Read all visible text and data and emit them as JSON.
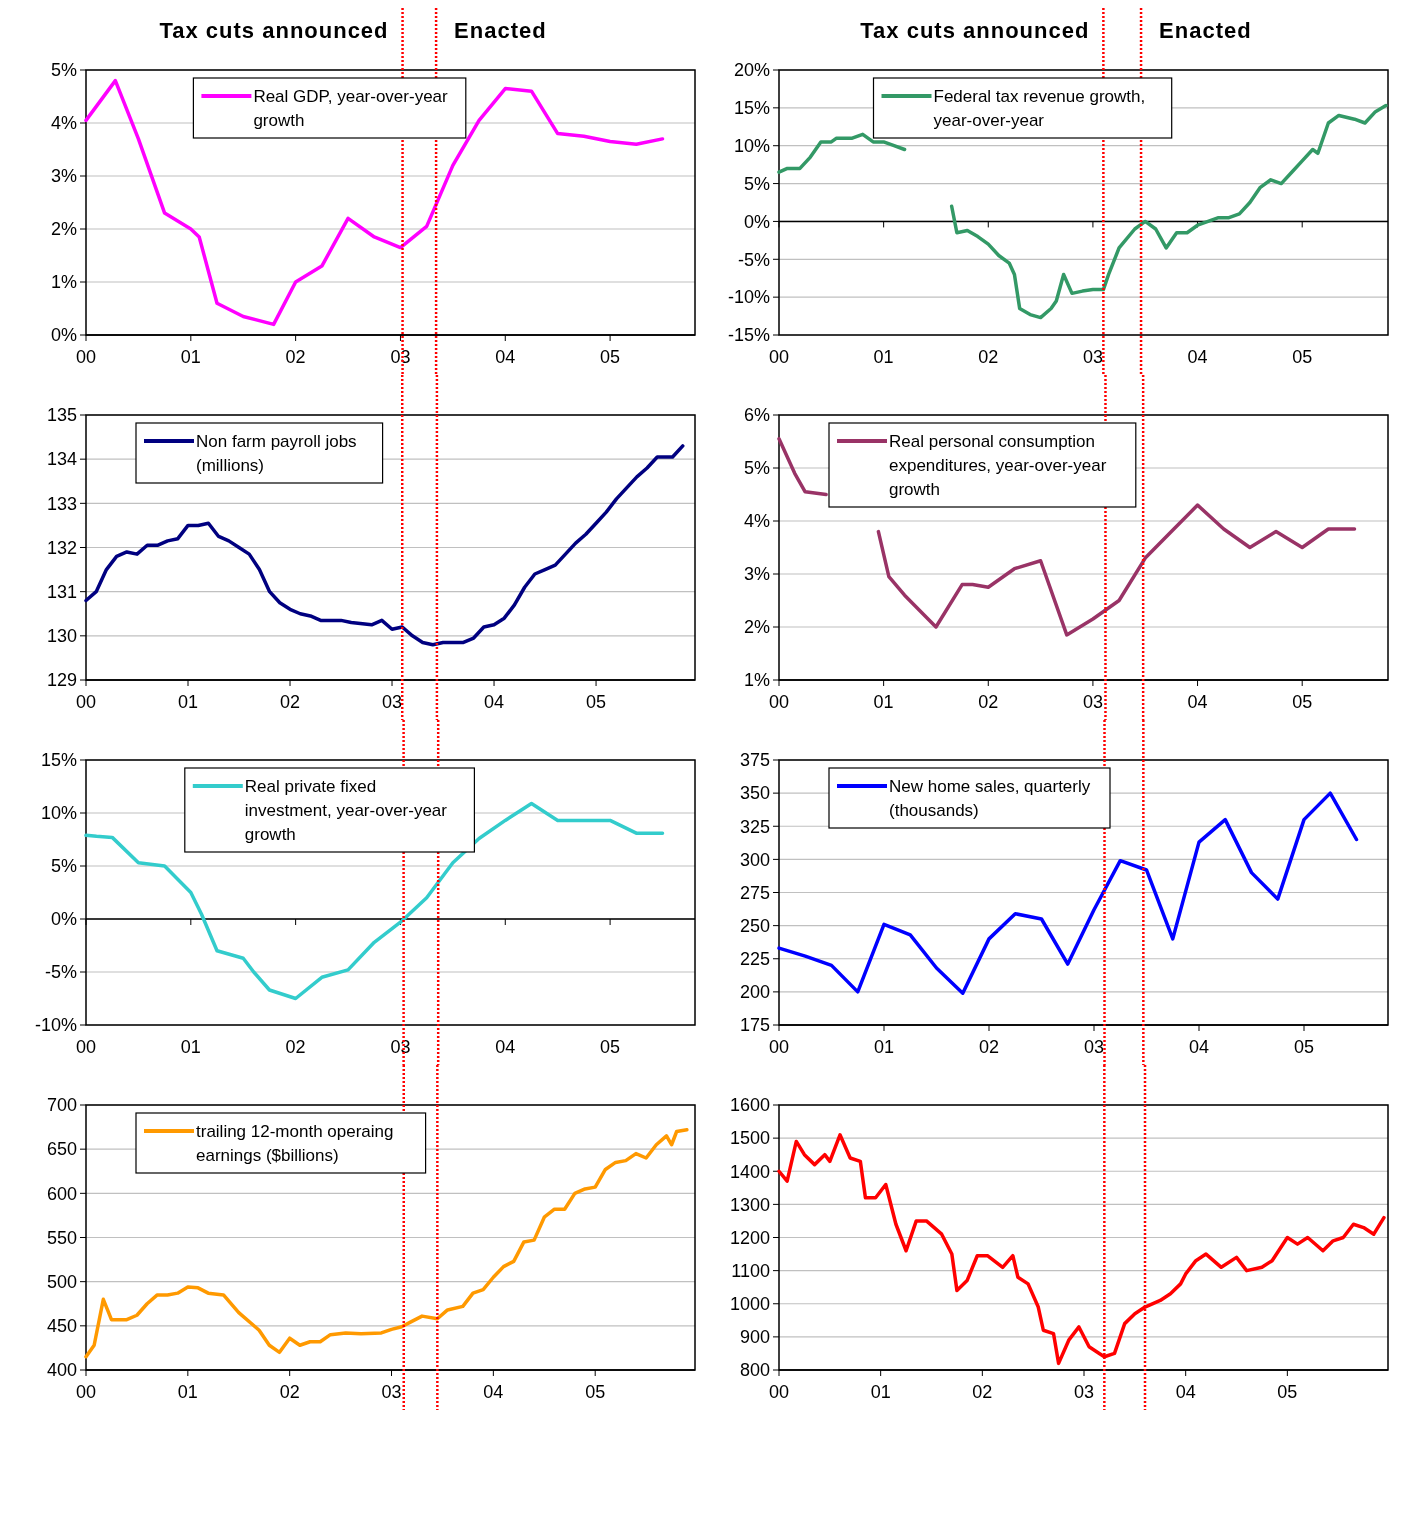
{
  "chart_data": [
    {
      "type": "line",
      "xlim": [
        0,
        5.81
      ],
      "ylim": [
        0,
        5
      ],
      "xticks": [
        {
          "value": 0,
          "label": "00"
        },
        {
          "value": 1,
          "label": "01"
        },
        {
          "value": 2,
          "label": "02"
        },
        {
          "value": 3,
          "label": "03"
        },
        {
          "value": 4,
          "label": "04"
        },
        {
          "value": 5,
          "label": "05"
        }
      ],
      "yticks": [
        {
          "value": 0,
          "label": "0%"
        },
        {
          "value": 1,
          "label": "1%"
        },
        {
          "value": 2,
          "label": "2%"
        },
        {
          "value": 3,
          "label": "3%"
        },
        {
          "value": 4,
          "label": "4%"
        },
        {
          "value": 5,
          "label": "5%"
        }
      ],
      "grid": "y",
      "legend": "top",
      "line_style": "solid",
      "marker": "none",
      "ref_lines": [
        {
          "axis": "x",
          "value": 3.02,
          "label": "Tax cuts announced",
          "color": "#ff0000",
          "line_style": "dotted"
        },
        {
          "axis": "x",
          "value": 3.34,
          "label": "Enacted",
          "color": "#ff0000",
          "line_style": "dotted"
        }
      ],
      "series": [
        {
          "name": "Real GDP, year-over-year growth",
          "color": "#ff00ff",
          "x": [
            0,
            0.28,
            0.5,
            0.75,
            1.0,
            1.08,
            1.25,
            1.5,
            1.79,
            2.0,
            2.25,
            2.5,
            2.75,
            3.0,
            3.25,
            3.5,
            3.75,
            4.0,
            4.25,
            4.5,
            4.75,
            5.0,
            5.25,
            5.5
          ],
          "values": [
            4.05,
            4.8,
            3.7,
            2.3,
            2.0,
            1.85,
            0.6,
            0.35,
            0.2,
            1.0,
            1.3,
            2.2,
            1.85,
            1.65,
            2.05,
            3.2,
            4.05,
            4.65,
            4.6,
            3.8,
            3.75,
            3.65,
            3.6,
            3.7
          ]
        }
      ]
    },
    {
      "type": "line",
      "xlim": [
        0,
        5.82
      ],
      "ylim": [
        -15,
        20
      ],
      "xticks": [
        {
          "value": 0,
          "label": "00"
        },
        {
          "value": 1,
          "label": "01"
        },
        {
          "value": 2,
          "label": "02"
        },
        {
          "value": 3,
          "label": "03"
        },
        {
          "value": 4,
          "label": "04"
        },
        {
          "value": 5,
          "label": "05"
        }
      ],
      "yticks": [
        {
          "value": -15,
          "label": "-15%"
        },
        {
          "value": -10,
          "label": "-10%"
        },
        {
          "value": -5,
          "label": "-5%"
        },
        {
          "value": 0,
          "label": "0%"
        },
        {
          "value": 5,
          "label": "5%"
        },
        {
          "value": 10,
          "label": "10%"
        },
        {
          "value": 15,
          "label": "15%"
        },
        {
          "value": 20,
          "label": "20%"
        }
      ],
      "grid": "y",
      "legend": "top",
      "line_style": "solid",
      "marker": "none",
      "ref_lines": [
        {
          "axis": "x",
          "value": 3.1,
          "label": "Tax cuts announced",
          "color": "#ff0000",
          "line_style": "dotted"
        },
        {
          "axis": "x",
          "value": 3.46,
          "label": "Enacted",
          "color": "#ff0000",
          "line_style": "dotted"
        }
      ],
      "series": [
        {
          "name": "Federal tax revenue growth, year-over-year",
          "color": "#339966",
          "x": [
            0,
            0.08,
            0.2,
            0.3,
            0.4,
            0.5,
            0.55,
            0.7,
            0.8,
            0.9,
            1.0,
            1.1,
            1.2,
            1.4,
            1.65,
            1.7,
            1.8,
            1.9,
            2.0,
            2.1,
            2.2,
            2.25,
            2.3,
            2.4,
            2.5,
            2.6,
            2.65,
            2.72,
            2.8,
            2.9,
            3.0,
            3.1,
            3.15,
            3.25,
            3.4,
            3.5,
            3.6,
            3.7,
            3.8,
            3.9,
            4.0,
            4.1,
            4.2,
            4.3,
            4.4,
            4.5,
            4.6,
            4.7,
            4.8,
            4.9,
            5.0,
            5.1,
            5.15,
            5.25,
            5.35,
            5.5,
            5.6,
            5.7,
            5.8
          ],
          "values": [
            6.5,
            7,
            7,
            8.5,
            10.5,
            10.5,
            11,
            11,
            11.5,
            10.5,
            10.5,
            10,
            9.5,
            null,
            2,
            -1.5,
            -1.2,
            -2,
            -3,
            -4.5,
            -5.5,
            -7,
            -11.5,
            -12.3,
            -12.7,
            -11.5,
            -10.5,
            -7,
            -9.5,
            -9.2,
            -9,
            -9,
            -7,
            -3.5,
            -1,
            0,
            -1,
            -3.5,
            -1.5,
            -1.5,
            -0.5,
            0,
            0.5,
            0.5,
            1,
            2.5,
            4.5,
            5.5,
            5,
            6.5,
            8,
            9.5,
            9,
            13,
            14,
            13.5,
            13,
            14.5,
            15.3
          ]
        }
      ]
    },
    {
      "type": "line",
      "xlim": [
        0,
        5.97
      ],
      "ylim": [
        129,
        135
      ],
      "xticks": [
        {
          "value": 0,
          "label": "00"
        },
        {
          "value": 1,
          "label": "01"
        },
        {
          "value": 2,
          "label": "02"
        },
        {
          "value": 3,
          "label": "03"
        },
        {
          "value": 4,
          "label": "04"
        },
        {
          "value": 5,
          "label": "05"
        }
      ],
      "yticks": [
        129,
        130,
        131,
        132,
        133,
        134,
        135
      ],
      "grid": "y",
      "legend": "top left",
      "line_style": "solid",
      "marker": "none",
      "ref_lines": [
        {
          "axis": "x",
          "value": 3.1,
          "color": "#ff0000",
          "line_style": "dotted"
        },
        {
          "axis": "x",
          "value": 3.44,
          "color": "#ff0000",
          "line_style": "dotted"
        }
      ],
      "series": [
        {
          "name": "Non farm payroll jobs (millions)",
          "color": "#000080",
          "x": [
            0,
            0.1,
            0.2,
            0.3,
            0.4,
            0.5,
            0.6,
            0.7,
            0.8,
            0.9,
            1.0,
            1.1,
            1.2,
            1.3,
            1.4,
            1.5,
            1.6,
            1.7,
            1.8,
            1.9,
            2.0,
            2.1,
            2.2,
            2.3,
            2.5,
            2.6,
            2.8,
            2.9,
            3.0,
            3.1,
            3.2,
            3.3,
            3.4,
            3.5,
            3.7,
            3.8,
            3.9,
            4.0,
            4.1,
            4.2,
            4.3,
            4.4,
            4.5,
            4.6,
            4.7,
            4.8,
            4.9,
            5.0,
            5.1,
            5.2,
            5.3,
            5.4,
            5.5,
            5.6,
            5.75,
            5.85
          ],
          "values": [
            130.8,
            131.0,
            131.5,
            131.8,
            131.9,
            131.85,
            132.05,
            132.05,
            132.15,
            132.2,
            132.5,
            132.5,
            132.55,
            132.25,
            132.15,
            132.0,
            131.85,
            131.5,
            131.0,
            130.75,
            130.6,
            130.5,
            130.45,
            130.35,
            130.35,
            130.3,
            130.25,
            130.35,
            130.15,
            130.2,
            130.0,
            129.85,
            129.8,
            129.85,
            129.85,
            129.95,
            130.2,
            130.25,
            130.4,
            130.7,
            131.1,
            131.4,
            131.5,
            131.6,
            131.85,
            132.1,
            132.3,
            132.55,
            132.8,
            133.1,
            133.35,
            133.6,
            133.8,
            134.05,
            134.05,
            134.3
          ]
        }
      ]
    },
    {
      "type": "line",
      "xlim": [
        0,
        5.82
      ],
      "ylim": [
        1,
        6
      ],
      "xticks": [
        {
          "value": 0,
          "label": "00"
        },
        {
          "value": 1,
          "label": "01"
        },
        {
          "value": 2,
          "label": "02"
        },
        {
          "value": 3,
          "label": "03"
        },
        {
          "value": 4,
          "label": "04"
        },
        {
          "value": 5,
          "label": "05"
        }
      ],
      "yticks": [
        {
          "value": 1,
          "label": "1%"
        },
        {
          "value": 2,
          "label": "2%"
        },
        {
          "value": 3,
          "label": "3%"
        },
        {
          "value": 4,
          "label": "4%"
        },
        {
          "value": 5,
          "label": "5%"
        },
        {
          "value": 6,
          "label": "6%"
        }
      ],
      "grid": "y",
      "legend": "top left",
      "line_style": "solid",
      "marker": "none",
      "ref_lines": [
        {
          "axis": "x",
          "value": 3.12,
          "color": "#ff0000",
          "line_style": "dotted"
        },
        {
          "axis": "x",
          "value": 3.48,
          "color": "#ff0000",
          "line_style": "dotted"
        }
      ],
      "series": [
        {
          "name": "Real personal consumption expenditures, year-over-year growth",
          "color": "#993366",
          "x": [
            0,
            0.15,
            0.25,
            0.45,
            0.7,
            0.95,
            1.05,
            1.2,
            1.5,
            1.75,
            1.85,
            2.0,
            2.25,
            2.5,
            2.75,
            3.0,
            3.25,
            3.5,
            3.75,
            4.0,
            4.25,
            4.5,
            4.75,
            5.0,
            5.25,
            5.5
          ],
          "values": [
            5.55,
            4.9,
            4.55,
            4.5,
            null,
            3.8,
            2.95,
            2.6,
            2.0,
            2.8,
            2.8,
            2.75,
            3.1,
            3.25,
            1.85,
            2.15,
            2.5,
            3.3,
            3.8,
            4.3,
            3.85,
            3.5,
            3.8,
            3.5,
            3.85,
            3.85
          ]
        }
      ]
    },
    {
      "type": "line",
      "xlim": [
        0,
        5.81
      ],
      "ylim": [
        -10,
        15
      ],
      "xticks": [
        {
          "value": 0,
          "label": "00"
        },
        {
          "value": 1,
          "label": "01"
        },
        {
          "value": 2,
          "label": "02"
        },
        {
          "value": 3,
          "label": "03"
        },
        {
          "value": 4,
          "label": "04"
        },
        {
          "value": 5,
          "label": "05"
        }
      ],
      "yticks": [
        {
          "value": -10,
          "label": "-10%"
        },
        {
          "value": -5,
          "label": "-5%"
        },
        {
          "value": 0,
          "label": "0%"
        },
        {
          "value": 5,
          "label": "5%"
        },
        {
          "value": 10,
          "label": "10%"
        },
        {
          "value": 15,
          "label": "15%"
        }
      ],
      "grid": "y",
      "legend": "top",
      "line_style": "solid",
      "marker": "none",
      "ref_lines": [
        {
          "axis": "x",
          "value": 3.03,
          "color": "#ff0000",
          "line_style": "dotted"
        },
        {
          "axis": "x",
          "value": 3.36,
          "color": "#ff0000",
          "line_style": "dotted"
        }
      ],
      "series": [
        {
          "name": "Real private fixed investment, year-over-year growth",
          "color": "#33cccc",
          "x": [
            0,
            0.1,
            0.25,
            0.5,
            0.75,
            1.0,
            1.1,
            1.25,
            1.5,
            1.6,
            1.75,
            2.0,
            2.25,
            2.5,
            2.75,
            3.0,
            3.25,
            3.5,
            3.75,
            4.0,
            4.25,
            4.5,
            4.75,
            5.0,
            5.25,
            5.5
          ],
          "values": [
            7.9,
            7.8,
            7.7,
            5.3,
            5.0,
            2.5,
            0.5,
            -3,
            -3.7,
            -5,
            -6.7,
            -7.5,
            -5.5,
            -4.8,
            -2.2,
            -0.3,
            2,
            5.3,
            7.6,
            9.3,
            10.9,
            9.3,
            9.3,
            9.3,
            8.1,
            8.1
          ]
        }
      ]
    },
    {
      "type": "line",
      "xlim": [
        0,
        5.8
      ],
      "ylim": [
        175,
        375
      ],
      "xticks": [
        {
          "value": 0,
          "label": "00"
        },
        {
          "value": 1,
          "label": "01"
        },
        {
          "value": 2,
          "label": "02"
        },
        {
          "value": 3,
          "label": "03"
        },
        {
          "value": 4,
          "label": "04"
        },
        {
          "value": 5,
          "label": "05"
        }
      ],
      "yticks": [
        175,
        200,
        225,
        250,
        275,
        300,
        325,
        350,
        375
      ],
      "grid": "y",
      "legend": "top left",
      "line_style": "solid",
      "marker": "none",
      "ref_lines": [
        {
          "axis": "x",
          "value": 3.1,
          "color": "#ff0000",
          "line_style": "dotted"
        },
        {
          "axis": "x",
          "value": 3.47,
          "color": "#ff0000",
          "line_style": "dotted"
        }
      ],
      "series": [
        {
          "name": "New home sales, quarterly (thousands)",
          "color": "#0000ff",
          "x": [
            0,
            0.25,
            0.5,
            0.75,
            1.0,
            1.25,
            1.5,
            1.75,
            2.0,
            2.25,
            2.5,
            2.75,
            3.0,
            3.25,
            3.5,
            3.75,
            4.0,
            4.25,
            4.5,
            4.75,
            5.0,
            5.25,
            5.5
          ],
          "values": [
            233,
            227,
            220,
            200,
            251,
            243,
            218,
            199,
            240,
            259,
            255,
            221,
            262,
            299,
            292,
            240,
            313,
            330,
            290,
            270,
            330,
            350,
            315
          ]
        }
      ]
    },
    {
      "type": "line",
      "xlim": [
        0,
        5.98
      ],
      "ylim": [
        400,
        700
      ],
      "xticks": [
        {
          "value": 0,
          "label": "00"
        },
        {
          "value": 1,
          "label": "01"
        },
        {
          "value": 2,
          "label": "02"
        },
        {
          "value": 3,
          "label": "03"
        },
        {
          "value": 4,
          "label": "04"
        },
        {
          "value": 5,
          "label": "05"
        }
      ],
      "yticks": [
        400,
        450,
        500,
        550,
        600,
        650,
        700
      ],
      "grid": "y",
      "legend": "top left",
      "line_style": "solid",
      "marker": "none",
      "ref_lines": [
        {
          "axis": "x",
          "value": 3.12,
          "color": "#ff0000",
          "line_style": "dotted"
        },
        {
          "axis": "x",
          "value": 3.45,
          "color": "#ff0000",
          "line_style": "dotted"
        }
      ],
      "series": [
        {
          "name": "trailing 12-month operaing earnings ($billions)",
          "color": "#ff9900",
          "x": [
            0,
            0.08,
            0.17,
            0.25,
            0.4,
            0.5,
            0.6,
            0.7,
            0.8,
            0.9,
            1.0,
            1.1,
            1.2,
            1.35,
            1.5,
            1.7,
            1.8,
            1.9,
            2.0,
            2.1,
            2.2,
            2.3,
            2.4,
            2.55,
            2.7,
            2.9,
            3.0,
            3.1,
            3.2,
            3.3,
            3.45,
            3.55,
            3.7,
            3.8,
            3.9,
            4.0,
            4.1,
            4.2,
            4.3,
            4.4,
            4.5,
            4.6,
            4.7,
            4.8,
            4.9,
            5.0,
            5.1,
            5.2,
            5.3,
            5.4,
            5.5,
            5.6,
            5.7,
            5.75,
            5.8,
            5.9
          ],
          "values": [
            415,
            428,
            480,
            457,
            457,
            462,
            475,
            485,
            485,
            487,
            494,
            493,
            487,
            485,
            465,
            445,
            428,
            420,
            436,
            428,
            432,
            432,
            440,
            442,
            441,
            442,
            446,
            449,
            455,
            461,
            458,
            468,
            472,
            487,
            491,
            505,
            517,
            523,
            545,
            547,
            573,
            582,
            582,
            600,
            605,
            607,
            627,
            635,
            637,
            645,
            640,
            655,
            665,
            655,
            670,
            672
          ]
        }
      ]
    },
    {
      "type": "line",
      "xlim": [
        0,
        5.99
      ],
      "ylim": [
        800,
        1600
      ],
      "xticks": [
        {
          "value": 0,
          "label": "00"
        },
        {
          "value": 1,
          "label": "01"
        },
        {
          "value": 2,
          "label": "02"
        },
        {
          "value": 3,
          "label": "03"
        },
        {
          "value": 4,
          "label": "04"
        },
        {
          "value": 5,
          "label": "05"
        }
      ],
      "yticks": [
        800,
        900,
        1000,
        1100,
        1200,
        1300,
        1400,
        1500,
        1600
      ],
      "grid": "y",
      "line_style": "solid",
      "marker": "none",
      "ref_lines": [
        {
          "axis": "x",
          "value": 3.2,
          "color": "#ff0000",
          "line_style": "dotted"
        },
        {
          "axis": "x",
          "value": 3.6,
          "color": "#ff0000",
          "line_style": "dotted"
        }
      ],
      "series": [
        {
          "color": "#ff0000",
          "x": [
            0,
            0.08,
            0.17,
            0.25,
            0.35,
            0.45,
            0.5,
            0.6,
            0.7,
            0.8,
            0.85,
            0.95,
            1.05,
            1.15,
            1.25,
            1.35,
            1.45,
            1.6,
            1.7,
            1.75,
            1.85,
            1.95,
            2.05,
            2.2,
            2.3,
            2.35,
            2.45,
            2.55,
            2.6,
            2.7,
            2.75,
            2.85,
            2.95,
            3.05,
            3.15,
            3.2,
            3.3,
            3.4,
            3.5,
            3.6,
            3.75,
            3.85,
            3.95,
            4.0,
            4.1,
            4.2,
            4.35,
            4.5,
            4.6,
            4.75,
            4.85,
            5.0,
            5.1,
            5.2,
            5.35,
            5.45,
            5.55,
            5.65,
            5.75,
            5.85,
            5.95
          ],
          "values": [
            1400,
            1370,
            1490,
            1450,
            1420,
            1450,
            1430,
            1510,
            1440,
            1430,
            1320,
            1320,
            1360,
            1240,
            1160,
            1250,
            1250,
            1210,
            1150,
            1040,
            1070,
            1145,
            1145,
            1110,
            1145,
            1080,
            1060,
            990,
            920,
            910,
            820,
            890,
            930,
            870,
            850,
            840,
            850,
            940,
            970,
            990,
            1010,
            1030,
            1060,
            1090,
            1130,
            1150,
            1110,
            1140,
            1100,
            1110,
            1130,
            1200,
            1180,
            1200,
            1160,
            1190,
            1200,
            1240,
            1230,
            1210,
            1260
          ]
        }
      ]
    }
  ]
}
